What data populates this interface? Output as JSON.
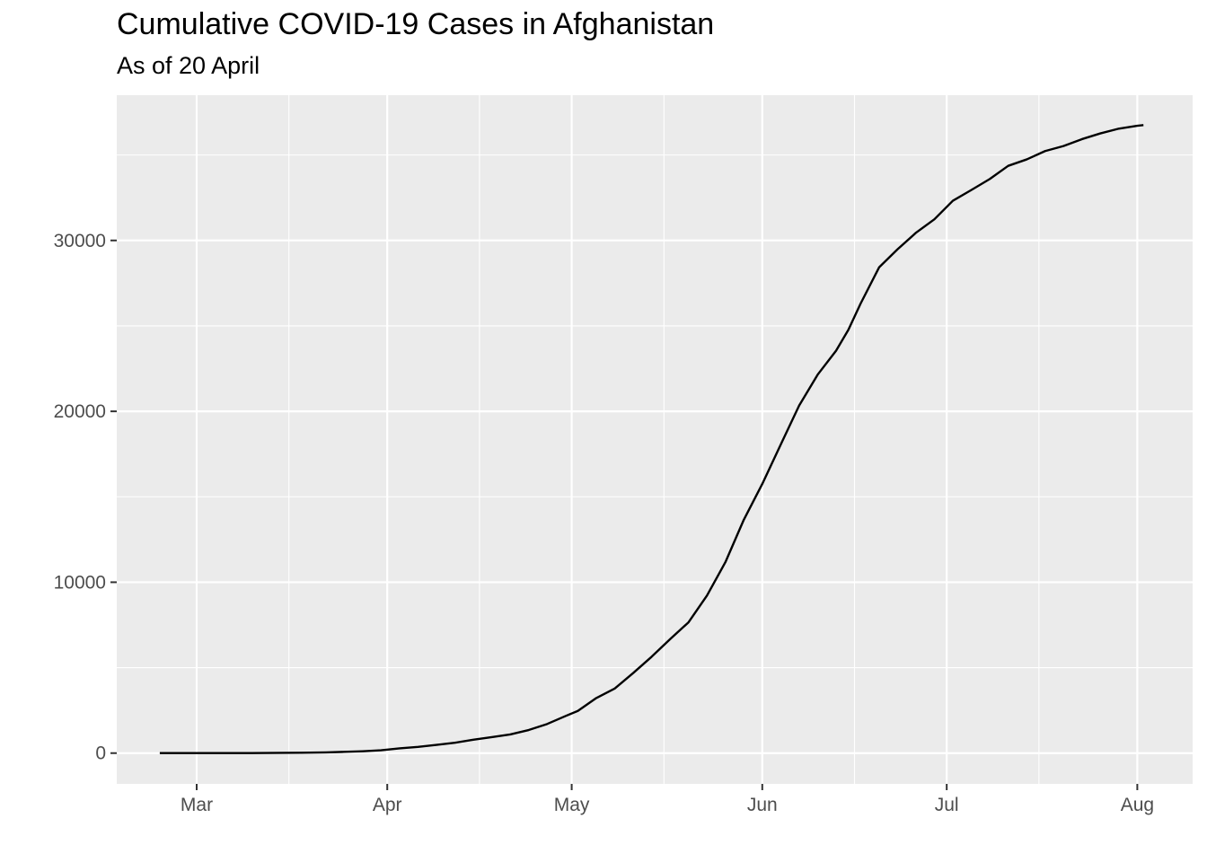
{
  "chart_data": {
    "type": "line",
    "title": "Cumulative COVID-19 Cases in Afghanistan",
    "subtitle": "As of 20 April",
    "xlabel": "",
    "ylabel": "",
    "grid": true,
    "background": "#ebebeb",
    "gridline_color": "#ffffff",
    "line_color": "#000000",
    "x_tick_labels": [
      "Mar",
      "Apr",
      "May",
      "Jun",
      "Jul",
      "Aug"
    ],
    "x_tick_dates": [
      "2020-03-01",
      "2020-04-01",
      "2020-05-01",
      "2020-06-01",
      "2020-07-01",
      "2020-08-01"
    ],
    "x_minor_grid_dates": [
      "2020-03-16",
      "2020-04-16",
      "2020-05-16",
      "2020-06-16",
      "2020-07-16"
    ],
    "x_range": [
      "2020-02-17",
      "2020-08-10"
    ],
    "y_tick_labels": [
      "0",
      "10000",
      "20000",
      "30000"
    ],
    "y_ticks": [
      0,
      10000,
      20000,
      30000
    ],
    "y_minor_grid": [
      5000,
      15000,
      25000,
      35000
    ],
    "ylim": [
      -1800,
      38500
    ],
    "series": [
      {
        "points": [
          [
            "2020-02-24",
            1
          ],
          [
            "2020-03-01",
            1
          ],
          [
            "2020-03-05",
            1
          ],
          [
            "2020-03-10",
            5
          ],
          [
            "2020-03-15",
            16
          ],
          [
            "2020-03-18",
            22
          ],
          [
            "2020-03-22",
            40
          ],
          [
            "2020-03-25",
            74
          ],
          [
            "2020-03-28",
            110
          ],
          [
            "2020-03-31",
            166
          ],
          [
            "2020-04-03",
            281
          ],
          [
            "2020-04-06",
            367
          ],
          [
            "2020-04-09",
            484
          ],
          [
            "2020-04-12",
            607
          ],
          [
            "2020-04-15",
            784
          ],
          [
            "2020-04-18",
            933
          ],
          [
            "2020-04-21",
            1092
          ],
          [
            "2020-04-24",
            1351
          ],
          [
            "2020-04-27",
            1703
          ],
          [
            "2020-04-30",
            2171
          ],
          [
            "2020-05-02",
            2469
          ],
          [
            "2020-05-05",
            3224
          ],
          [
            "2020-05-08",
            3778
          ],
          [
            "2020-05-11",
            4687
          ],
          [
            "2020-05-14",
            5639
          ],
          [
            "2020-05-17",
            6664
          ],
          [
            "2020-05-20",
            7653
          ],
          [
            "2020-05-23",
            9216
          ],
          [
            "2020-05-26",
            11173
          ],
          [
            "2020-05-29",
            13659
          ],
          [
            "2020-06-01",
            15750
          ],
          [
            "2020-06-04",
            18054
          ],
          [
            "2020-06-07",
            20342
          ],
          [
            "2020-06-10",
            22142
          ],
          [
            "2020-06-13",
            23546
          ],
          [
            "2020-06-15",
            24766
          ],
          [
            "2020-06-17",
            26310
          ],
          [
            "2020-06-20",
            28424
          ],
          [
            "2020-06-23",
            29481
          ],
          [
            "2020-06-26",
            30451
          ],
          [
            "2020-06-29",
            31238
          ],
          [
            "2020-07-02",
            32324
          ],
          [
            "2020-07-05",
            32951
          ],
          [
            "2020-07-08",
            33594
          ],
          [
            "2020-07-11",
            34366
          ],
          [
            "2020-07-14",
            34740
          ],
          [
            "2020-07-17",
            35229
          ],
          [
            "2020-07-20",
            35526
          ],
          [
            "2020-07-23",
            35928
          ],
          [
            "2020-07-26",
            36263
          ],
          [
            "2020-07-29",
            36542
          ],
          [
            "2020-08-01",
            36710
          ],
          [
            "2020-08-02",
            36747
          ]
        ]
      }
    ]
  }
}
